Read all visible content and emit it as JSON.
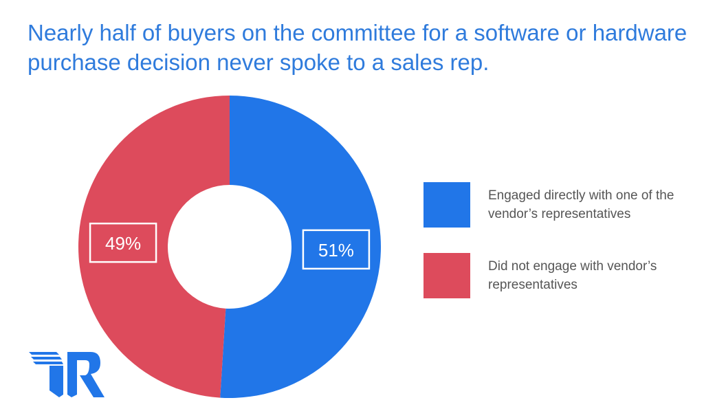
{
  "chart_data": {
    "type": "pie",
    "title": "Nearly half of buyers on the committee for a software or hardware purchase decision never spoke to a sales rep.",
    "donut": true,
    "slices": [
      {
        "label": "Engaged directly with one of the vendor’s representatives",
        "value": 51,
        "display": "51%",
        "color": "#2176e8"
      },
      {
        "label": "Did not engage with vendor’s representatives",
        "value": 49,
        "display": "49%",
        "color": "#dd4b5c"
      }
    ],
    "legend_position": "right"
  },
  "logo": {
    "text": "TR",
    "color": "#2176e8"
  }
}
